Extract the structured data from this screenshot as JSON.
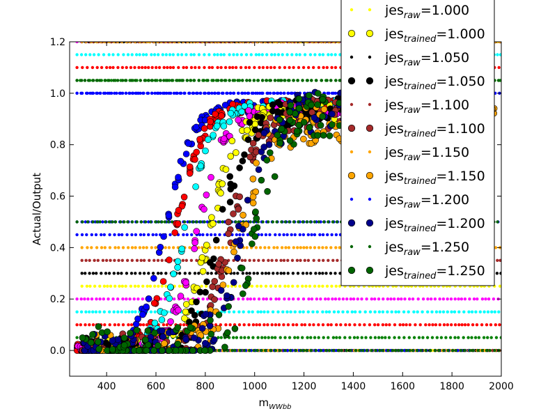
{
  "chart_data": {
    "type": "scatter",
    "title": "",
    "xlabel": "m",
    "xlabel_sub": "WWbb",
    "ylabel": "Actual/Output",
    "xlim": [
      250,
      2000
    ],
    "ylim": [
      -0.1,
      1.2
    ],
    "xticks": [
      400,
      600,
      800,
      1000,
      1200,
      1400,
      1600,
      1800,
      2000
    ],
    "yticks": [
      0.0,
      0.2,
      0.4,
      0.6,
      0.8,
      1.0,
      1.2
    ],
    "xtick_labels": [
      "400",
      "600",
      "800",
      "1000",
      "1200",
      "1400",
      "1600",
      "1800",
      "2000"
    ],
    "ytick_labels": [
      "0.0",
      "0.2",
      "0.4",
      "0.6",
      "0.8",
      "1.0",
      "1.2"
    ],
    "grid": false,
    "legend_placement": "top-right (partly above plot)",
    "series": [
      {
        "name": "1.000",
        "kind": "raw",
        "color": "#ffff00",
        "values": {
          "low_band": [
            0.0,
            0.25
          ],
          "high_band": [
            1.2
          ],
          "x_range": [
            300,
            2000
          ]
        }
      },
      {
        "name": "1.000",
        "kind": "trained",
        "color": "#ffff00",
        "values": {
          "midpoint": 820,
          "plateau": 0.93,
          "x_range": [
            300,
            1500
          ]
        }
      },
      {
        "name": "1.050",
        "kind": "raw",
        "color": "#000000",
        "values": {
          "low_band": [
            0.0,
            0.3
          ],
          "high_band": [
            1.2
          ],
          "x_range": [
            300,
            2000
          ]
        }
      },
      {
        "name": "1.050",
        "kind": "trained",
        "color": "#000000",
        "values": {
          "midpoint": 860,
          "plateau": 0.93,
          "x_range": [
            300,
            1500
          ]
        }
      },
      {
        "name": "1.100",
        "kind": "raw",
        "color": "#a52a2a",
        "values": {
          "low_band": [
            0.0,
            0.35
          ],
          "high_band": [
            1.2
          ],
          "x_range": [
            300,
            2000
          ]
        }
      },
      {
        "name": "1.100",
        "kind": "trained",
        "color": "#a52a2a",
        "values": {
          "midpoint": 900,
          "plateau": 0.92,
          "x_range": [
            300,
            1600
          ]
        }
      },
      {
        "name": "1.150",
        "kind": "raw",
        "color": "#ffa500",
        "values": {
          "low_band": [
            0.0,
            0.4
          ],
          "high_band": [
            1.2
          ],
          "x_range": [
            300,
            2000
          ]
        }
      },
      {
        "name": "1.150",
        "kind": "trained",
        "color": "#ffa500",
        "values": {
          "midpoint": 940,
          "plateau": 0.88,
          "x_range": [
            300,
            2000
          ]
        }
      },
      {
        "name": "1.200",
        "kind": "raw",
        "color": "#0000ff",
        "values": {
          "low_band": [
            0.0,
            0.45
          ],
          "high_band": [
            1.0
          ],
          "x_range": [
            280,
            1900
          ]
        }
      },
      {
        "name": "1.200",
        "kind": "trained",
        "color": "#00008b",
        "values": {
          "midpoint": 950,
          "plateau": 0.93,
          "x_range": [
            300,
            1600
          ]
        }
      },
      {
        "name": "1.250",
        "kind": "raw",
        "color": "#006400",
        "values": {
          "low_band": [
            0.0,
            0.5
          ],
          "high_band": [
            1.05
          ],
          "x_range": [
            280,
            2000
          ]
        }
      },
      {
        "name": "1.250",
        "kind": "trained",
        "color": "#006400",
        "values": {
          "midpoint": 1000,
          "plateau": 0.93,
          "x_range": [
            300,
            1500
          ]
        }
      }
    ],
    "background_series": [
      {
        "color": "#0000ff",
        "kind": "trained",
        "midpoint": 640,
        "plateau": 0.95,
        "raw_bands": [
          0.0,
          0.5,
          1.0
        ]
      },
      {
        "color": "#ff0000",
        "kind": "trained",
        "midpoint": 680,
        "plateau": 0.95,
        "raw_bands": [
          0.1,
          1.1
        ]
      },
      {
        "color": "#00ffff",
        "kind": "trained",
        "midpoint": 720,
        "plateau": 0.95,
        "raw_bands": [
          0.15,
          1.15
        ]
      },
      {
        "color": "#ff00ff",
        "kind": "trained",
        "midpoint": 770,
        "plateau": 0.94,
        "raw_bands": [
          0.2,
          1.2
        ]
      },
      {
        "color": "#008000",
        "kind": "raw",
        "raw_bands": [
          0.05,
          1.05
        ]
      }
    ],
    "legend_entries": [
      {
        "label_main": "jes",
        "label_sub": "raw",
        "label_value": "=1.000"
      },
      {
        "label_main": "jes",
        "label_sub": "trained",
        "label_value": "=1.000"
      },
      {
        "label_main": "jes",
        "label_sub": "raw",
        "label_value": "=1.050"
      },
      {
        "label_main": "jes",
        "label_sub": "trained",
        "label_value": "=1.050"
      },
      {
        "label_main": "jes",
        "label_sub": "raw",
        "label_value": "=1.100"
      },
      {
        "label_main": "jes",
        "label_sub": "trained",
        "label_value": "=1.100"
      },
      {
        "label_main": "jes",
        "label_sub": "raw",
        "label_value": "=1.150"
      },
      {
        "label_main": "jes",
        "label_sub": "trained",
        "label_value": "=1.150"
      },
      {
        "label_main": "jes",
        "label_sub": "raw",
        "label_value": "=1.200"
      },
      {
        "label_main": "jes",
        "label_sub": "trained",
        "label_value": "=1.200"
      },
      {
        "label_main": "jes",
        "label_sub": "raw",
        "label_value": "=1.250"
      },
      {
        "label_main": "jes",
        "label_sub": "trained",
        "label_value": "=1.250"
      }
    ]
  }
}
